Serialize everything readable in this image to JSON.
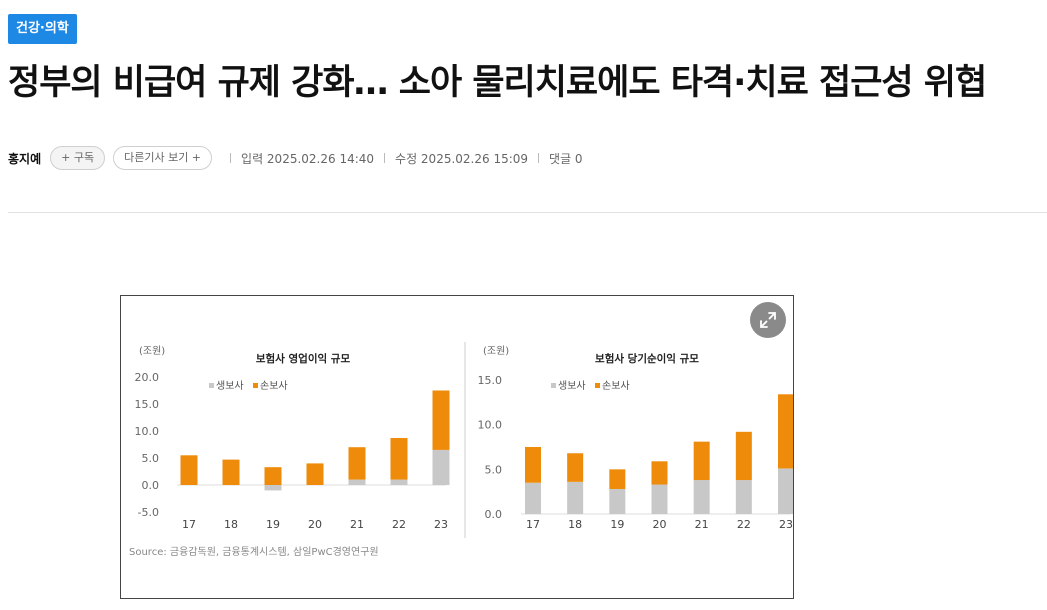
{
  "article": {
    "category": "건강·의학",
    "headline": "정부의 비급여 규제 강화… 소아 물리치료에도 타격·치료 접근성 위협",
    "author": "홍지예",
    "subscribe_label": "+ 구독",
    "more_articles_label": "다른기사 보기 +",
    "published": "입력 2025.02.26 14:40",
    "modified": "수정 2025.02.26 15:09",
    "comments": "댓글 0"
  },
  "figure": {
    "source": "Source: 금융감독원, 금융통계시스템, 삼일PwC경영연구원",
    "expand_icon": "expand-icon"
  },
  "chart_data": [
    {
      "type": "bar",
      "stacked": true,
      "title": "보험사 영업이익 규모",
      "unit_label": "(조원)",
      "categories": [
        "17",
        "18",
        "19",
        "20",
        "21",
        "22",
        "23"
      ],
      "series": [
        {
          "name": "생보사",
          "color": "#c8c8c8",
          "values": [
            0.0,
            0.0,
            -1.0,
            0.0,
            1.0,
            1.0,
            6.5
          ]
        },
        {
          "name": "손보사",
          "color": "#ee8b0a",
          "values": [
            5.5,
            4.7,
            3.3,
            4.0,
            6.0,
            7.7,
            11.0
          ]
        }
      ],
      "yticks": [
        "20.0",
        "15.0",
        "10.0",
        "5.0",
        "0.0",
        "-5.0"
      ],
      "ylim": [
        -5,
        20
      ],
      "legend_position": "top-left"
    },
    {
      "type": "bar",
      "stacked": true,
      "title": "보험사 당기순이익 규모",
      "unit_label": "(조원)",
      "categories": [
        "17",
        "18",
        "19",
        "20",
        "21",
        "22",
        "23"
      ],
      "series": [
        {
          "name": "생보사",
          "color": "#c8c8c8",
          "values": [
            3.5,
            3.6,
            2.8,
            3.3,
            3.8,
            3.8,
            5.1
          ]
        },
        {
          "name": "손보사",
          "color": "#ee8b0a",
          "values": [
            4.0,
            3.2,
            2.2,
            2.6,
            4.3,
            5.4,
            8.3
          ]
        }
      ],
      "yticks": [
        "15.0",
        "10.0",
        "5.0",
        "0.0"
      ],
      "ylim": [
        0,
        15
      ],
      "legend_position": "top-left"
    }
  ]
}
